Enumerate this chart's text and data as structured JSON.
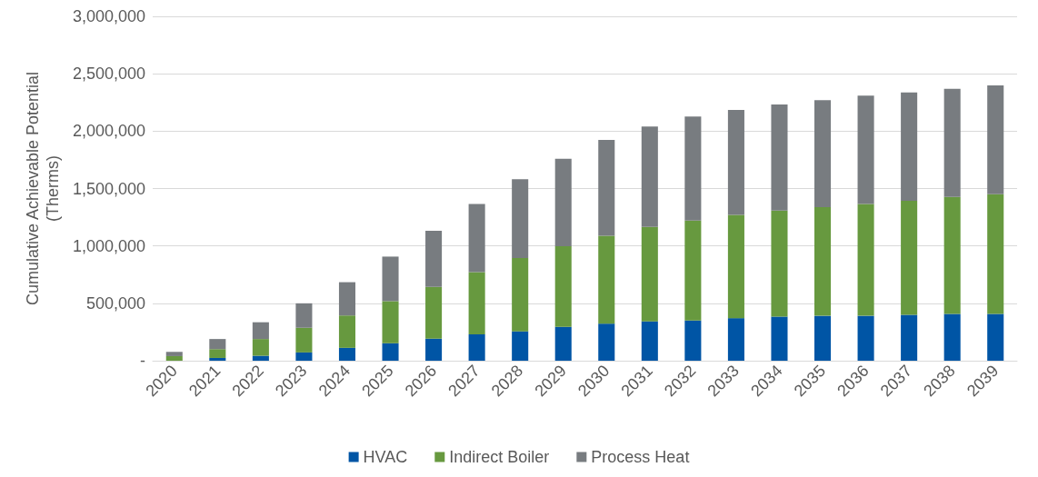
{
  "chart_data": {
    "type": "bar",
    "stacked": true,
    "ylabel": "Cumulative Achievable Potential\n(Therms)",
    "categories": [
      "2020",
      "2021",
      "2022",
      "2023",
      "2024",
      "2025",
      "2026",
      "2027",
      "2028",
      "2029",
      "2030",
      "2031",
      "2032",
      "2033",
      "2034",
      "2035",
      "2036",
      "2037",
      "2038",
      "2039"
    ],
    "series": [
      {
        "name": "HVAC",
        "color": "#0055a5",
        "values": [
          null,
          24000,
          43000,
          72000,
          112000,
          152000,
          192000,
          229000,
          256000,
          295000,
          323000,
          343000,
          351000,
          371000,
          383000,
          391000,
          391000,
          400000,
          408000,
          408000
        ]
      },
      {
        "name": "Indirect Boiler",
        "color": "#67993f",
        "values": [
          40000,
          77000,
          146000,
          215000,
          282000,
          367000,
          452000,
          542000,
          639000,
          703000,
          765000,
          822000,
          870000,
          899000,
          926000,
          947000,
          975000,
          994000,
          1018000,
          1043000
        ]
      },
      {
        "name": "Process Heat",
        "color": "#787c80",
        "values": [
          37000,
          88000,
          146000,
          213000,
          290000,
          388000,
          487000,
          594000,
          687000,
          762000,
          836000,
          875000,
          907000,
          915000,
          924000,
          932000,
          944000,
          944000,
          943000,
          947000
        ]
      }
    ],
    "ylim": [
      0,
      3000000
    ],
    "yticks": [
      {
        "value": 0,
        "label": "-"
      },
      {
        "value": 500000,
        "label": "500,000"
      },
      {
        "value": 1000000,
        "label": "1,000,000"
      },
      {
        "value": 1500000,
        "label": "1,500,000"
      },
      {
        "value": 2000000,
        "label": "2,000,000"
      },
      {
        "value": 2500000,
        "label": "2,500,000"
      },
      {
        "value": 3000000,
        "label": "3,000,000"
      }
    ],
    "grid": "y",
    "legend": "bottom"
  }
}
